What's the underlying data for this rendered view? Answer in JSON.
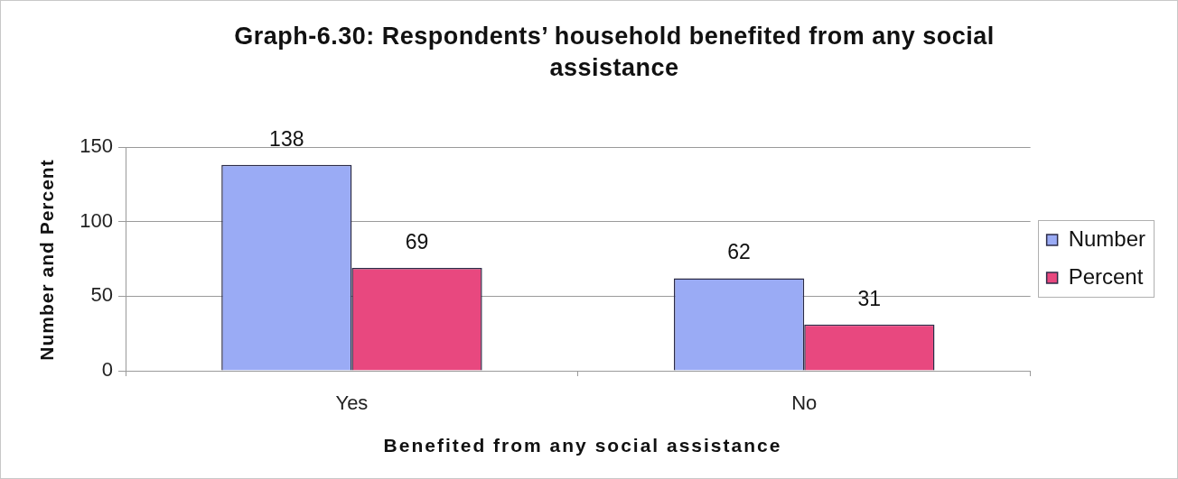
{
  "chart_data": {
    "type": "bar",
    "title": "Graph-6.30: Respondents’ household benefited from any social assistance",
    "xlabel": "Benefited from any social assistance",
    "ylabel": "Number and Percent",
    "categories": [
      "Yes",
      "No"
    ],
    "series": [
      {
        "name": "Number",
        "color": "#9aabf5",
        "values": [
          138,
          62
        ]
      },
      {
        "name": "Percent",
        "color": "#e8487f",
        "values": [
          69,
          31
        ]
      }
    ],
    "ylim": [
      0,
      150
    ],
    "yticks": [
      0,
      50,
      100,
      150
    ],
    "grid": "y",
    "legend": "right",
    "data_labels": true
  }
}
